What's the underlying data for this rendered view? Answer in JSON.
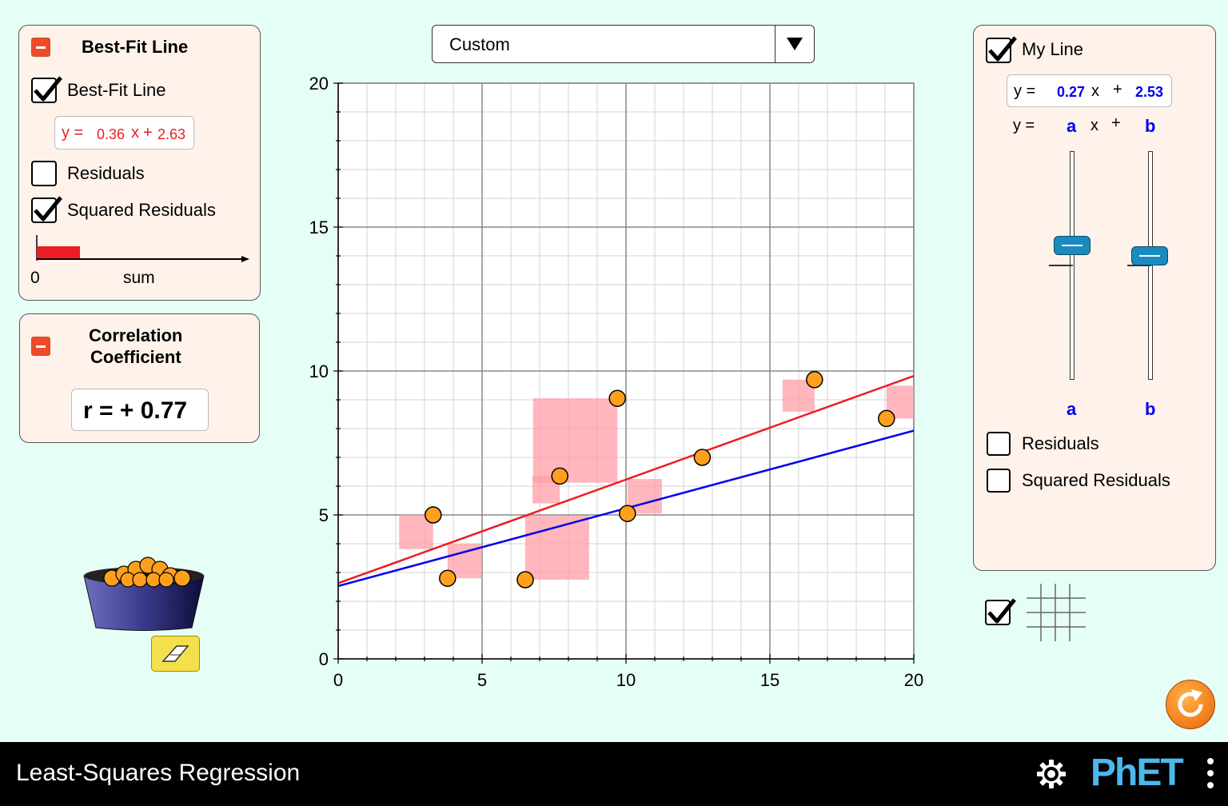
{
  "best_fit_panel": {
    "title": "Best-Fit Line",
    "checkbox_best_fit": {
      "label": "Best-Fit Line",
      "checked": true
    },
    "equation": {
      "prefix": "y =",
      "slope": "0.36",
      "x_label": "x",
      "plus": "+",
      "intercept": "2.63"
    },
    "checkbox_residuals": {
      "label": "Residuals",
      "checked": false
    },
    "checkbox_squared_residuals": {
      "label": "Squared Residuals",
      "checked": true
    },
    "sum_bar": {
      "zero_label": "0",
      "sum_label": "sum",
      "fraction": 0.21
    }
  },
  "correlation_panel": {
    "title_line1": "Correlation",
    "title_line2": "Coefficient",
    "value": "r = + 0.77"
  },
  "data_set_combo": {
    "selected": "Custom"
  },
  "my_line_panel": {
    "title": "My Line",
    "checked": true,
    "equation": {
      "prefix": "y =",
      "slope": "0.27",
      "x_label": "x",
      "plus": "+",
      "intercept": "2.53"
    },
    "symbolic": {
      "prefix": "y =",
      "a": "a",
      "x_label": "x",
      "plus": "+",
      "b": "b"
    },
    "slider_a": {
      "label": "a",
      "value": 0.27
    },
    "slider_b": {
      "label": "b",
      "value": 2.53
    },
    "checkbox_residuals": {
      "label": "Residuals",
      "checked": false
    },
    "checkbox_squared_residuals": {
      "label": "Squared Residuals",
      "checked": false
    }
  },
  "grid_toggle": {
    "checked": true
  },
  "footer": {
    "title": "Least-Squares Regression",
    "brand": "PhET"
  },
  "colors": {
    "best_fit": "#ee1c24",
    "my_line": "#0000ee",
    "square": "#ff9ea6",
    "point": "#ffa01c"
  },
  "chart_data": {
    "type": "scatter",
    "x_ticks": [
      "0",
      "5",
      "10",
      "15",
      "20"
    ],
    "y_ticks": [
      "0",
      "5",
      "10",
      "15",
      "20"
    ],
    "xlim": [
      0,
      20
    ],
    "ylim": [
      0,
      20
    ],
    "grid": true,
    "points": [
      {
        "x": 3.3,
        "y": 5.0
      },
      {
        "x": 3.8,
        "y": 2.8
      },
      {
        "x": 6.5,
        "y": 2.75
      },
      {
        "x": 7.7,
        "y": 6.35
      },
      {
        "x": 9.7,
        "y": 9.05
      },
      {
        "x": 10.05,
        "y": 5.05
      },
      {
        "x": 12.65,
        "y": 7.0
      },
      {
        "x": 16.55,
        "y": 9.7
      },
      {
        "x": 19.05,
        "y": 8.35
      }
    ],
    "lines": [
      {
        "name": "best_fit",
        "slope": 0.36,
        "intercept": 2.63
      },
      {
        "name": "my_line",
        "slope": 0.27,
        "intercept": 2.53
      }
    ]
  }
}
